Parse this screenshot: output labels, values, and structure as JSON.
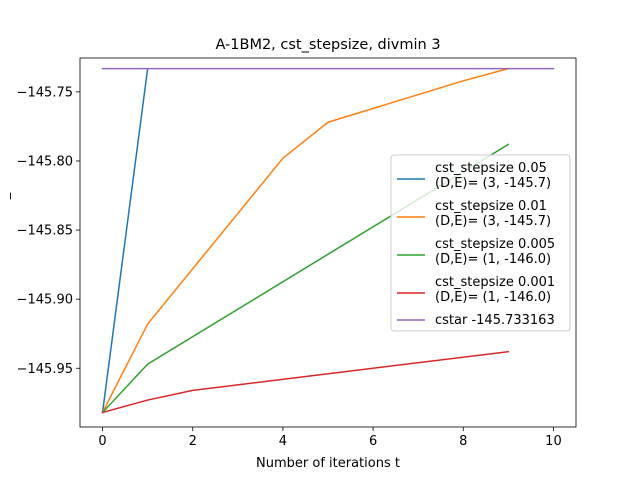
{
  "chart_data": {
    "type": "line",
    "title": "A-1BM2, cst_stepsize, divmin 3",
    "xlabel": "Number of iterations t",
    "ylabel": "_",
    "xlim": [
      -0.5,
      10.5
    ],
    "ylim": [
      -145.9925,
      -145.7255
    ],
    "xticks": [
      0,
      2,
      4,
      6,
      8,
      10
    ],
    "yticks": [
      -145.95,
      -145.9,
      -145.85,
      -145.8,
      -145.75
    ],
    "legend_position": "center-right",
    "series": [
      {
        "name": "cst_stepsize 0.05\n(D,E)= (3, -145.7)",
        "color": "#1f77b4",
        "x": [
          0,
          1
        ],
        "y": [
          -145.982,
          -145.733163
        ]
      },
      {
        "name": "cst_stepsize 0.01\n(D,E)= (3, -145.7)",
        "color": "#ff7f0e",
        "x": [
          0,
          1,
          4,
          5,
          8,
          9
        ],
        "y": [
          -145.982,
          -145.918,
          -145.798,
          -145.772,
          -145.742,
          -145.733163
        ]
      },
      {
        "name": "cst_stepsize 0.005\n(D,E)= (1, -146.0)",
        "color": "#2ca02c",
        "x": [
          0,
          1,
          9
        ],
        "y": [
          -145.982,
          -145.947,
          -145.788
        ]
      },
      {
        "name": "cst_stepsize 0.001\n(D,E)= (1, -146.0)",
        "color": "#d62728",
        "x": [
          0,
          1,
          2,
          9
        ],
        "y": [
          -145.982,
          -145.973,
          -145.966,
          -145.938
        ]
      },
      {
        "name": "cstar -145.733163",
        "color": "#9467bd",
        "x": [
          0,
          10
        ],
        "y": [
          -145.733163,
          -145.733163
        ]
      }
    ]
  }
}
